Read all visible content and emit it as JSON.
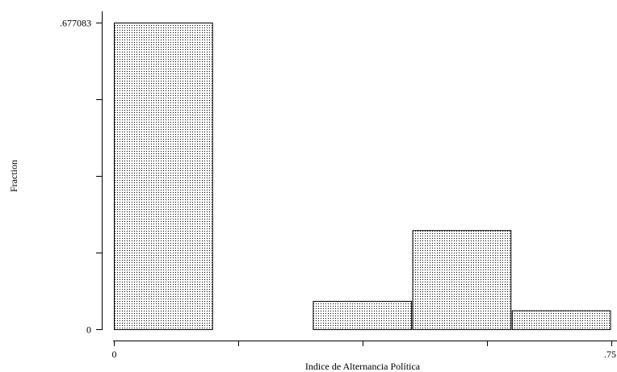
{
  "chart_data": {
    "type": "bar",
    "xlabel": "Indice de Alternancia Política",
    "ylabel": "Fraction",
    "xlim": [
      0,
      0.75
    ],
    "ylim": [
      0,
      0.677083
    ],
    "x_tick_values": [
      0,
      0.1875,
      0.375,
      0.5625,
      0.75
    ],
    "x_tick_labels": [
      "0",
      "",
      "",
      "",
      ".75"
    ],
    "y_tick_values": [
      0,
      0.169271,
      0.338542,
      0.507812,
      0.677083
    ],
    "y_tick_labels": [
      "0",
      "",
      "",
      "",
      ".677083"
    ],
    "bins": [
      {
        "x0": 0.0,
        "x1": 0.15,
        "value": 0.677083
      },
      {
        "x0": 0.15,
        "x1": 0.3,
        "value": 0
      },
      {
        "x0": 0.3,
        "x1": 0.45,
        "value": 0.0625
      },
      {
        "x0": 0.45,
        "x1": 0.6,
        "value": 0.21875
      },
      {
        "x0": 0.6,
        "x1": 0.75,
        "value": 0.041667
      }
    ],
    "grid": false,
    "legend": "none",
    "bar_fill_pattern": "stippled",
    "colors": {
      "bar_fill": "#ffffff",
      "bar_dots": "#000000",
      "outline": "#000000"
    }
  }
}
